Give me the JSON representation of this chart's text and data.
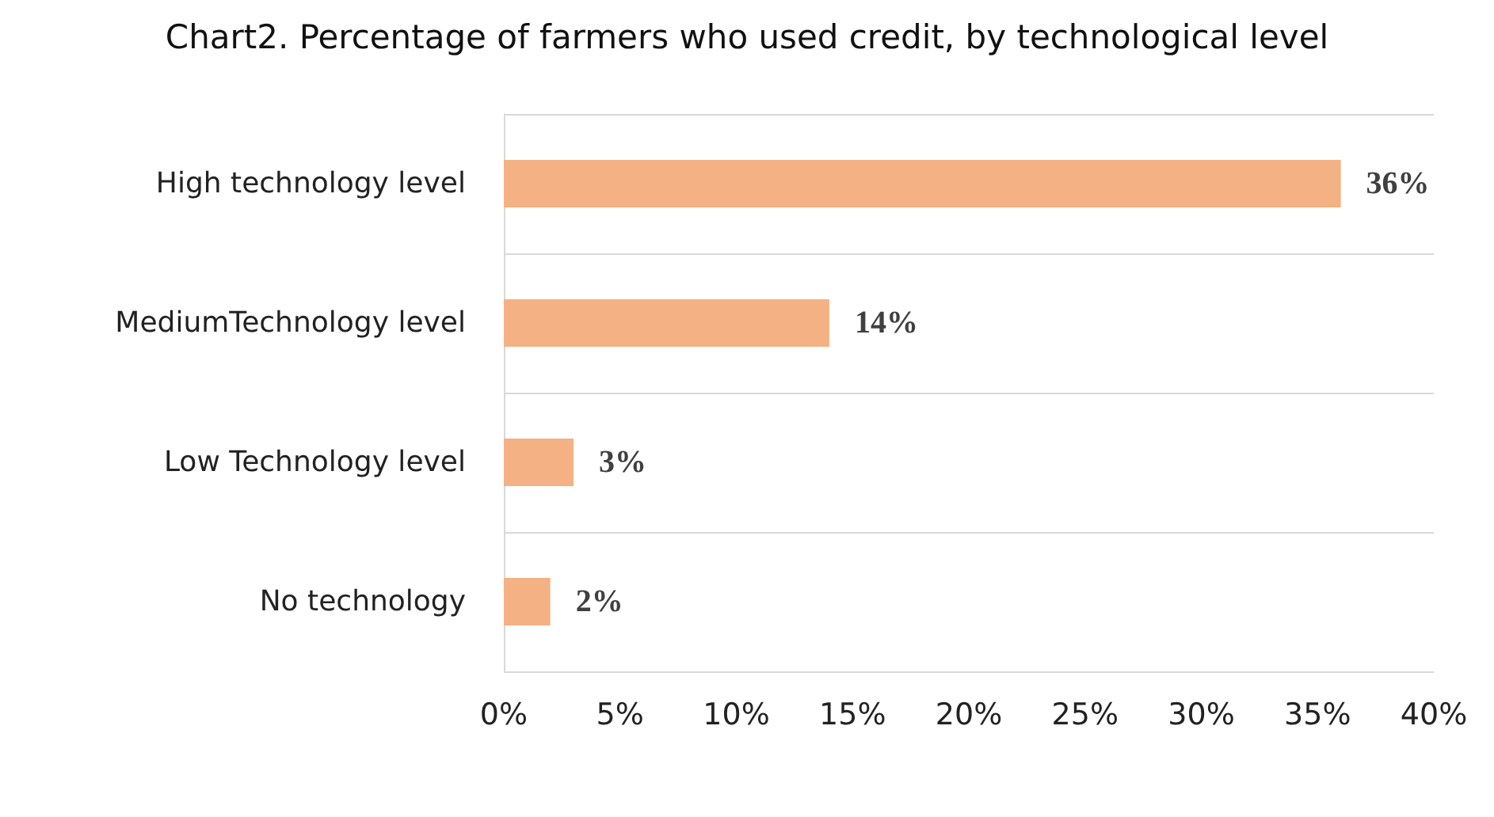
{
  "chart_data": {
    "type": "bar",
    "orientation": "horizontal",
    "title": "Chart2. Percentage of farmers who used credit, by technological level",
    "categories": [
      "High technology level",
      "MediumTechnology level",
      "Low Technology level",
      "No technology"
    ],
    "values": [
      36,
      14,
      3,
      2
    ],
    "value_labels": [
      "36%",
      "14%",
      "3%",
      "2%"
    ],
    "color": "#f4b183",
    "xlim": [
      0,
      40
    ],
    "xticks": [
      {
        "value": 0,
        "label": "0%"
      },
      {
        "value": 5,
        "label": "5%"
      },
      {
        "value": 10,
        "label": "10%"
      },
      {
        "value": 15,
        "label": "15%"
      },
      {
        "value": 20,
        "label": "20%"
      },
      {
        "value": 25,
        "label": "25%"
      },
      {
        "value": 30,
        "label": "30%"
      },
      {
        "value": 35,
        "label": "35%"
      },
      {
        "value": 40,
        "label": "40%"
      }
    ],
    "grid": "y"
  }
}
